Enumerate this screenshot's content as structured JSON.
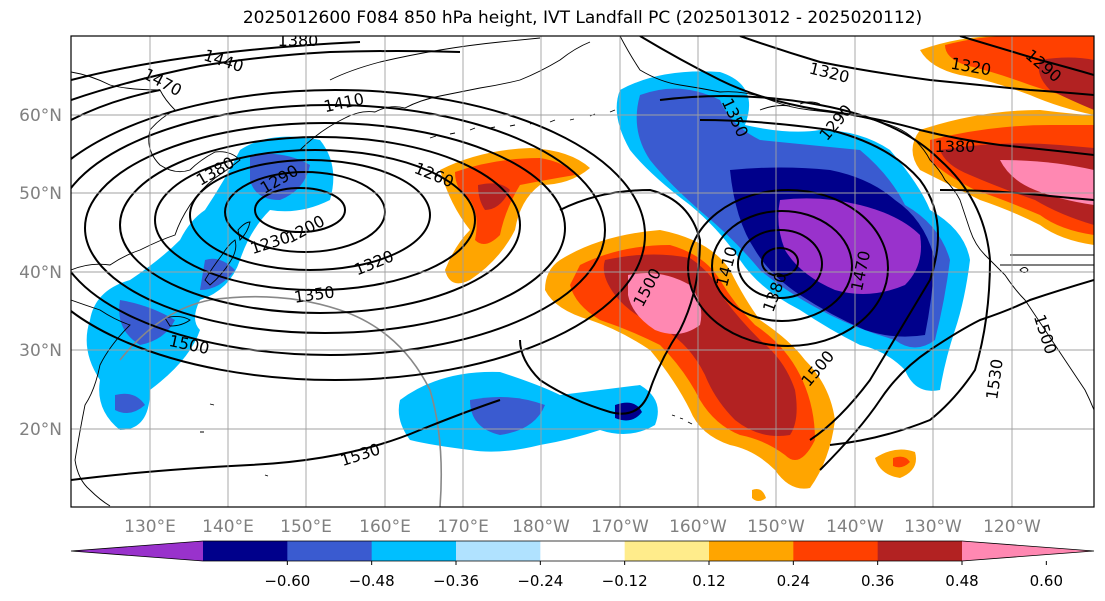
{
  "title": "2025012600 F084 850 hPa height, IVT Landfall PC (2025013012 - 2025020112)",
  "lat_labels": [
    "60°N",
    "50°N",
    "40°N",
    "30°N",
    "20°N"
  ],
  "lon_labels": [
    "130°E",
    "140°E",
    "150°E",
    "160°E",
    "170°E",
    "180°W",
    "170°W",
    "160°W",
    "150°W",
    "140°W",
    "130°W",
    "120°W"
  ],
  "contour_labels": [
    "1380",
    "1440",
    "1470",
    "1410",
    "1380",
    "1290",
    "1260",
    "1200",
    "1230",
    "1320",
    "1350",
    "1500",
    "1530",
    "1500",
    "1410",
    "1380",
    "1470",
    "1500",
    "1530",
    "1500",
    "1320",
    "1290",
    "1380",
    "1320",
    "1290",
    "1350"
  ],
  "colorbar": {
    "ticks": [
      "−0.60",
      "−0.48",
      "−0.36",
      "−0.24",
      "−0.12",
      "0.12",
      "0.24",
      "0.36",
      "0.48",
      "0.60"
    ],
    "colors": [
      "#9932cc",
      "#00008b",
      "#3a5bd0",
      "#00bfff",
      "#b0e2ff",
      "#ffffff",
      "#ffec8b",
      "#ffa500",
      "#ff4000",
      "#b22222",
      "#ff88b2"
    ]
  },
  "shading_colors": {
    "neg_light": "#00bfff",
    "neg_mid": "#3a5bd0",
    "neg_dark": "#00008b",
    "neg_min": "#9932cc",
    "pos_low": "#ffa500",
    "pos_mid": "#ff4000",
    "pos_high": "#b22222",
    "pos_max": "#ff88b2"
  }
}
